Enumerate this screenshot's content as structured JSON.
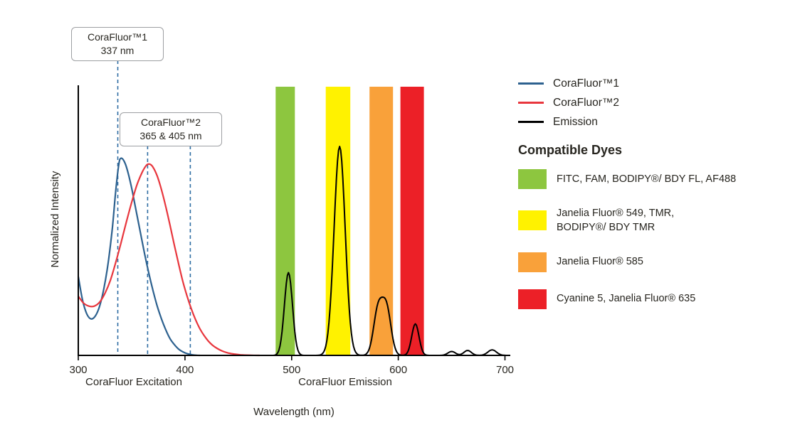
{
  "axis": {
    "y_label": "Normalized Intensity",
    "x_label": "Wavelength (nm)",
    "x_sub_left": "CoraFluor Excitation",
    "x_sub_right": "CoraFluor Emission"
  },
  "annotations": [
    {
      "line1": "CoraFluor™1",
      "line2": "337 nm"
    },
    {
      "line1": "CoraFluor™2",
      "line2": "365 & 405 nm"
    }
  ],
  "legend": {
    "entries": [
      {
        "label": "CoraFluor™1",
        "color": "#2d618f"
      },
      {
        "label": "CoraFluor™2",
        "color": "#e8363d"
      },
      {
        "label": "Emission",
        "color": "#000000"
      }
    ],
    "dyes_heading": "Compatible Dyes",
    "dyes": [
      {
        "label": "FITC, FAM, BODIPY®/ BDY FL, AF488",
        "color": "#8dc63f"
      },
      {
        "label": "Janelia Fluor® 549, TMR,\nBODIPY®/ BDY TMR",
        "color": "#fff200"
      },
      {
        "label": "Janelia Fluor® 585",
        "color": "#f9a13a"
      },
      {
        "label": "Cyanine 5, Janelia Fluor® 635",
        "color": "#ec2027"
      }
    ]
  },
  "chart_data": {
    "type": "line",
    "title": "CoraFluor excitation and emission spectra with compatible dye filter bands",
    "xlabel": "Wavelength (nm)",
    "ylabel": "Normalized Intensity",
    "xlim": [
      300,
      705
    ],
    "ylim": [
      0,
      1.37
    ],
    "x_ticks": [
      300,
      400,
      500,
      600,
      700
    ],
    "grid": false,
    "legend_position": "right",
    "marker_color": "#2e6da3",
    "dashed_markers_nm": [
      337,
      365,
      405
    ],
    "bands": [
      {
        "name": "FITC, FAM, BODIPY/ BDY FL, AF488",
        "range": [
          485,
          503
        ],
        "color": "#8dc63f"
      },
      {
        "name": "Janelia Fluor 549, TMR, BODIPY/ BDY TMR",
        "range": [
          532,
          555
        ],
        "color": "#fff200"
      },
      {
        "name": "Janelia Fluor 585",
        "range": [
          573,
          595
        ],
        "color": "#f9a13a"
      },
      {
        "name": "Cyanine 5, Janelia Fluor 635",
        "range": [
          602,
          624
        ],
        "color": "#ec2027"
      }
    ],
    "series": [
      {
        "id": "corafluor1-excitation-curve",
        "name": "CoraFluor™1 excitation",
        "color": "#2d618f",
        "points": [
          [
            300,
            0.4
          ],
          [
            304,
            0.28
          ],
          [
            308,
            0.21
          ],
          [
            312,
            0.185
          ],
          [
            316,
            0.2
          ],
          [
            320,
            0.25
          ],
          [
            324,
            0.34
          ],
          [
            328,
            0.47
          ],
          [
            332,
            0.65
          ],
          [
            335,
            0.83
          ],
          [
            338,
            0.97
          ],
          [
            340,
            1.0
          ],
          [
            343,
            0.985
          ],
          [
            346,
            0.94
          ],
          [
            350,
            0.85
          ],
          [
            354,
            0.74
          ],
          [
            358,
            0.63
          ],
          [
            362,
            0.52
          ],
          [
            366,
            0.42
          ],
          [
            370,
            0.33
          ],
          [
            374,
            0.25
          ],
          [
            378,
            0.185
          ],
          [
            382,
            0.13
          ],
          [
            386,
            0.085
          ],
          [
            390,
            0.055
          ],
          [
            394,
            0.032
          ],
          [
            398,
            0.018
          ],
          [
            402,
            0.009
          ],
          [
            406,
            0.004
          ],
          [
            410,
            0.001
          ],
          [
            414,
            0
          ]
        ]
      },
      {
        "id": "corafluor2-excitation-curve",
        "name": "CoraFluor™2 excitation",
        "color": "#e8363d",
        "points": [
          [
            300,
            0.3
          ],
          [
            305,
            0.265
          ],
          [
            310,
            0.25
          ],
          [
            315,
            0.25
          ],
          [
            320,
            0.27
          ],
          [
            325,
            0.315
          ],
          [
            330,
            0.38
          ],
          [
            335,
            0.47
          ],
          [
            340,
            0.57
          ],
          [
            345,
            0.675
          ],
          [
            350,
            0.775
          ],
          [
            355,
            0.865
          ],
          [
            360,
            0.93
          ],
          [
            364,
            0.965
          ],
          [
            367,
            0.97
          ],
          [
            370,
            0.955
          ],
          [
            374,
            0.91
          ],
          [
            378,
            0.84
          ],
          [
            382,
            0.755
          ],
          [
            386,
            0.66
          ],
          [
            390,
            0.56
          ],
          [
            394,
            0.465
          ],
          [
            398,
            0.375
          ],
          [
            402,
            0.3
          ],
          [
            406,
            0.235
          ],
          [
            410,
            0.18
          ],
          [
            414,
            0.135
          ],
          [
            418,
            0.1
          ],
          [
            422,
            0.072
          ],
          [
            426,
            0.051
          ],
          [
            430,
            0.036
          ],
          [
            435,
            0.022
          ],
          [
            440,
            0.013
          ],
          [
            446,
            0.007
          ],
          [
            452,
            0.003
          ],
          [
            460,
            0.001
          ],
          [
            470,
            0
          ]
        ]
      },
      {
        "id": "emission-curve",
        "name": "Emission",
        "color": "#000000",
        "peaks": [
          {
            "c": 497,
            "h": 0.42,
            "s": 3.8
          },
          {
            "c": 545,
            "h": 1.06,
            "s": 5.2
          },
          {
            "c": 581,
            "h": 0.23,
            "s": 4.2
          },
          {
            "c": 589,
            "h": 0.235,
            "s": 4.2
          },
          {
            "c": 616,
            "h": 0.16,
            "s": 3.4
          },
          {
            "c": 650,
            "h": 0.02,
            "s": 3.5
          },
          {
            "c": 665,
            "h": 0.025,
            "s": 3.5
          },
          {
            "c": 688,
            "h": 0.028,
            "s": 4.0
          }
        ]
      }
    ]
  }
}
